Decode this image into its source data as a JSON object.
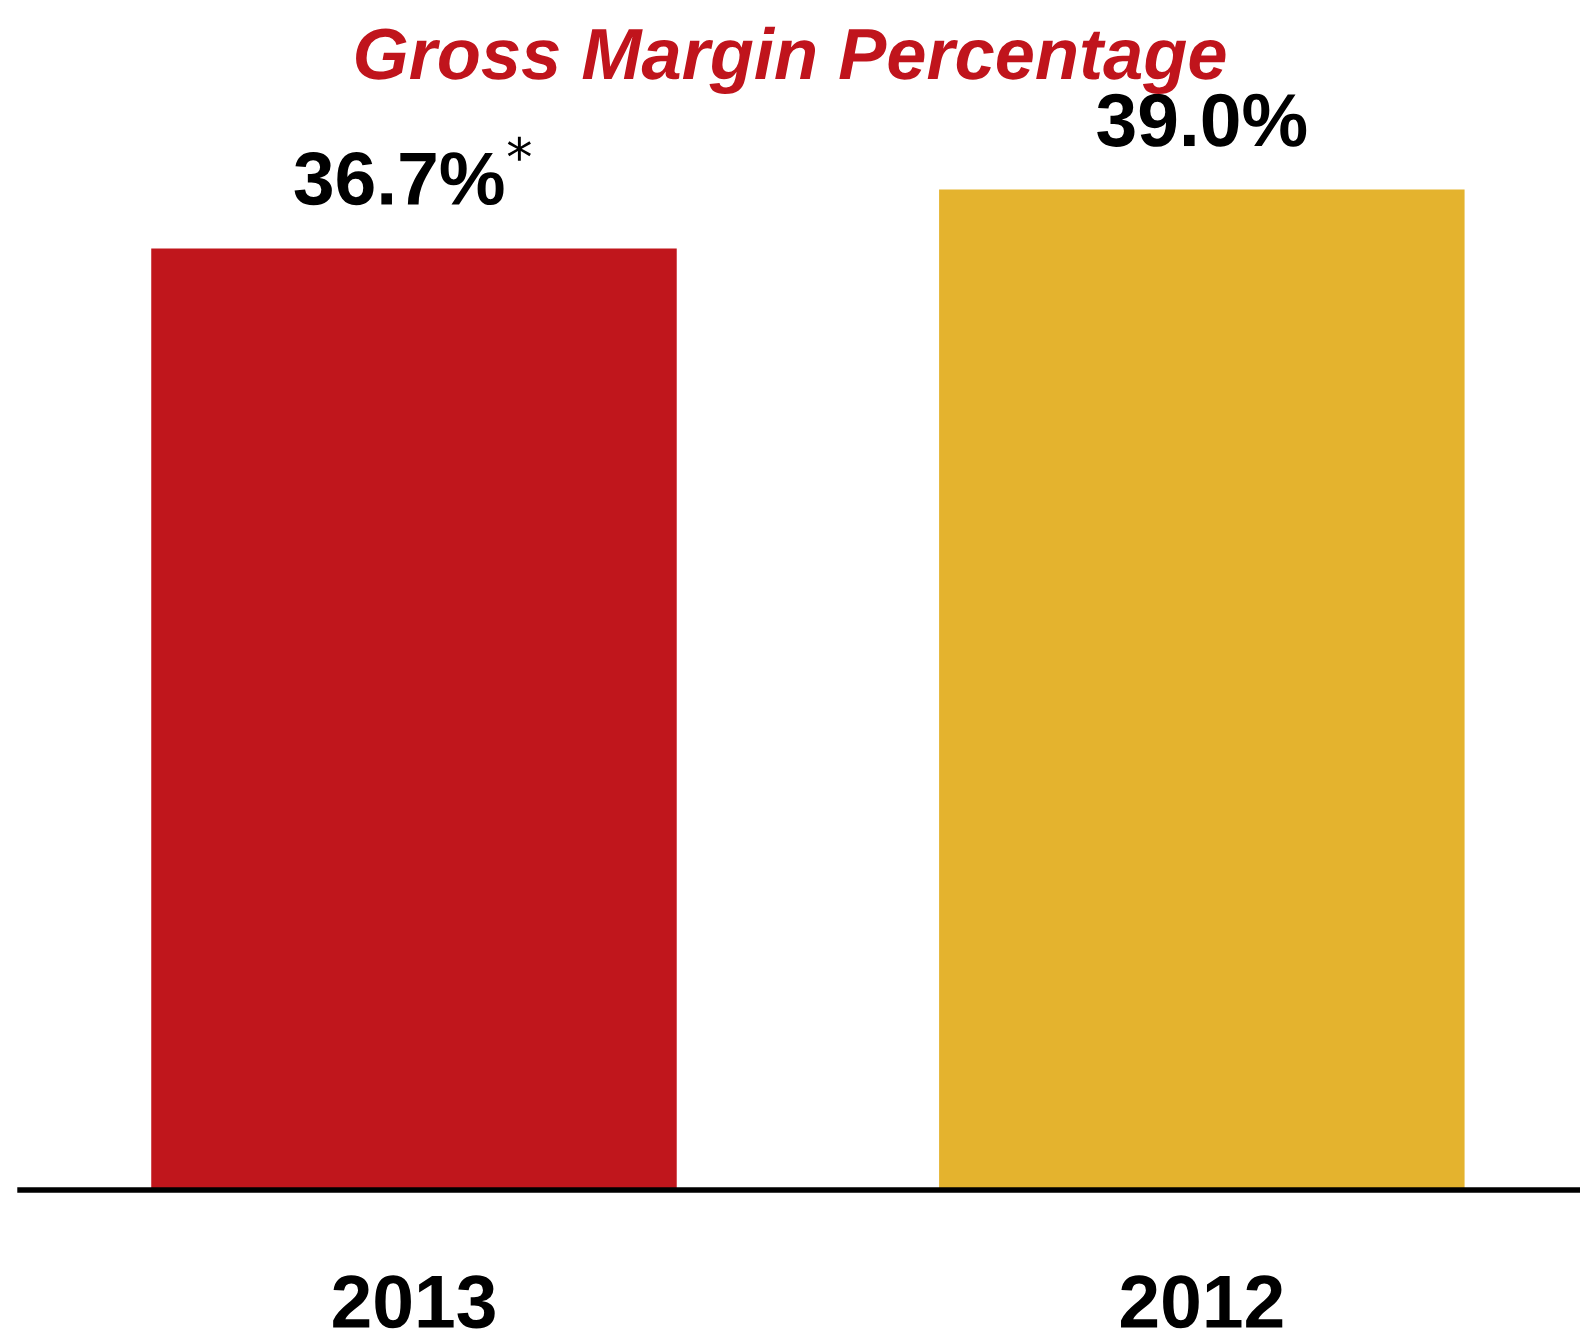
{
  "chart_data": {
    "type": "bar",
    "title": "Gross Margin Percentage",
    "categories": [
      "2013",
      "2012"
    ],
    "values": [
      36.7,
      39.0
    ],
    "colors": [
      "#c0161c",
      "#e4b32e"
    ],
    "value_labels": [
      "36.7%$^{*}$",
      "39.0%"
    ],
    "tick_labels": "x",
    "grid": false,
    "legend": false
  }
}
